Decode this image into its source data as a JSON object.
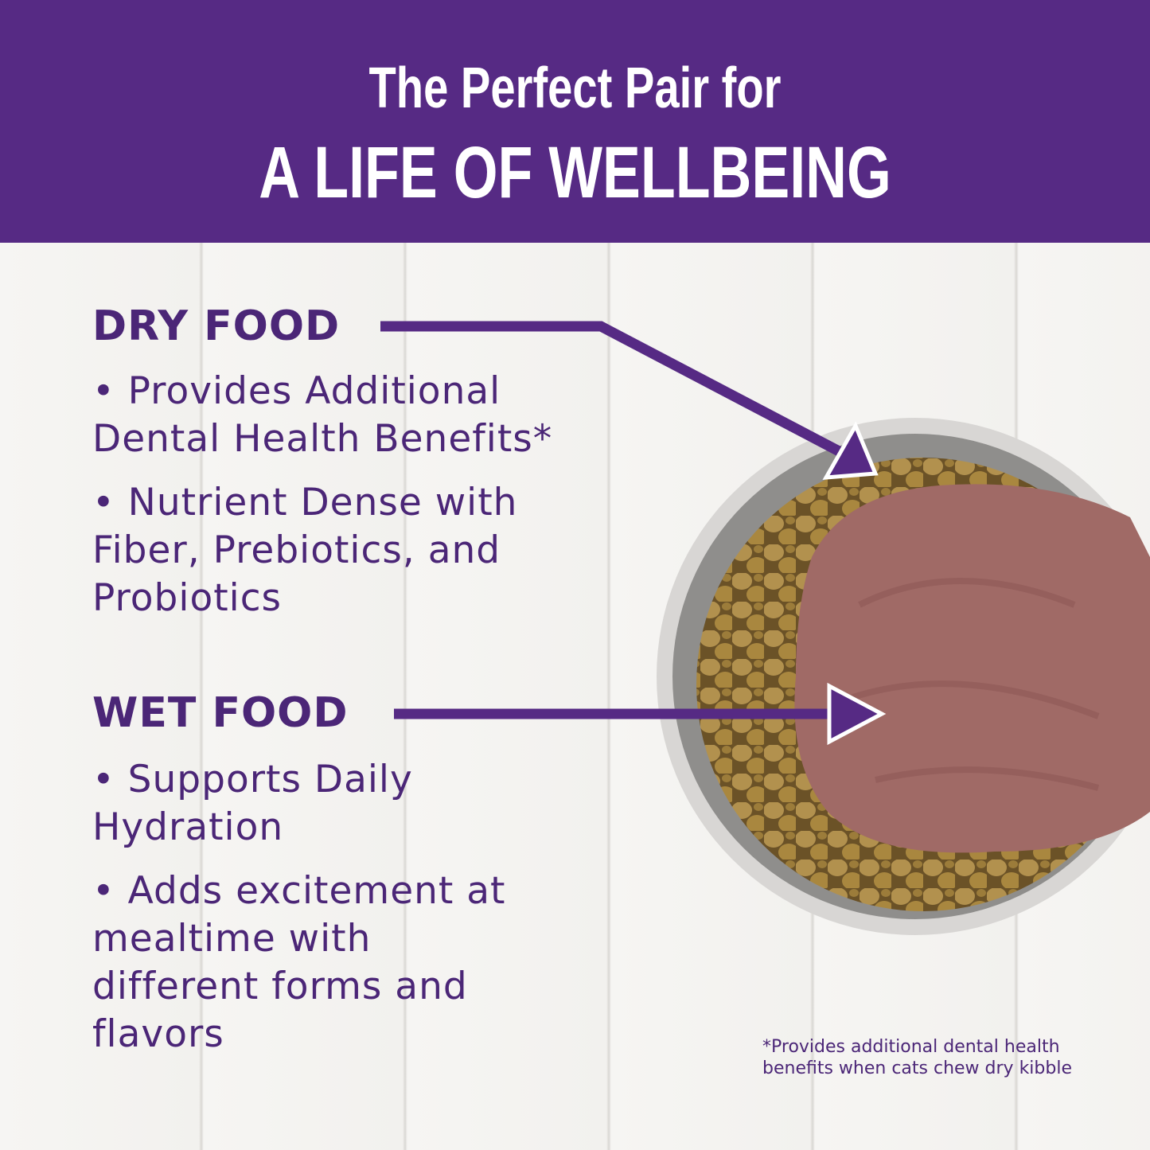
{
  "header": {
    "line1": "The Perfect Pair for",
    "line2": "A LIFE OF WELLBEING"
  },
  "dry": {
    "heading": "DRY FOOD",
    "bullets": [
      "• Provides Additional Dental Health Benefits*",
      "• Nutrient Dense with Fiber, Prebiotics, and Probiotics"
    ]
  },
  "wet": {
    "heading": "WET FOOD",
    "bullets": [
      "• Supports Daily Hydration",
      "• Adds excitement at mealtime with different forms and flavors"
    ]
  },
  "footnote": "*Provides additional dental health benefits when cats chew dry kibble",
  "colors": {
    "brand_purple": "#562a84",
    "text_purple": "#4b2677"
  }
}
